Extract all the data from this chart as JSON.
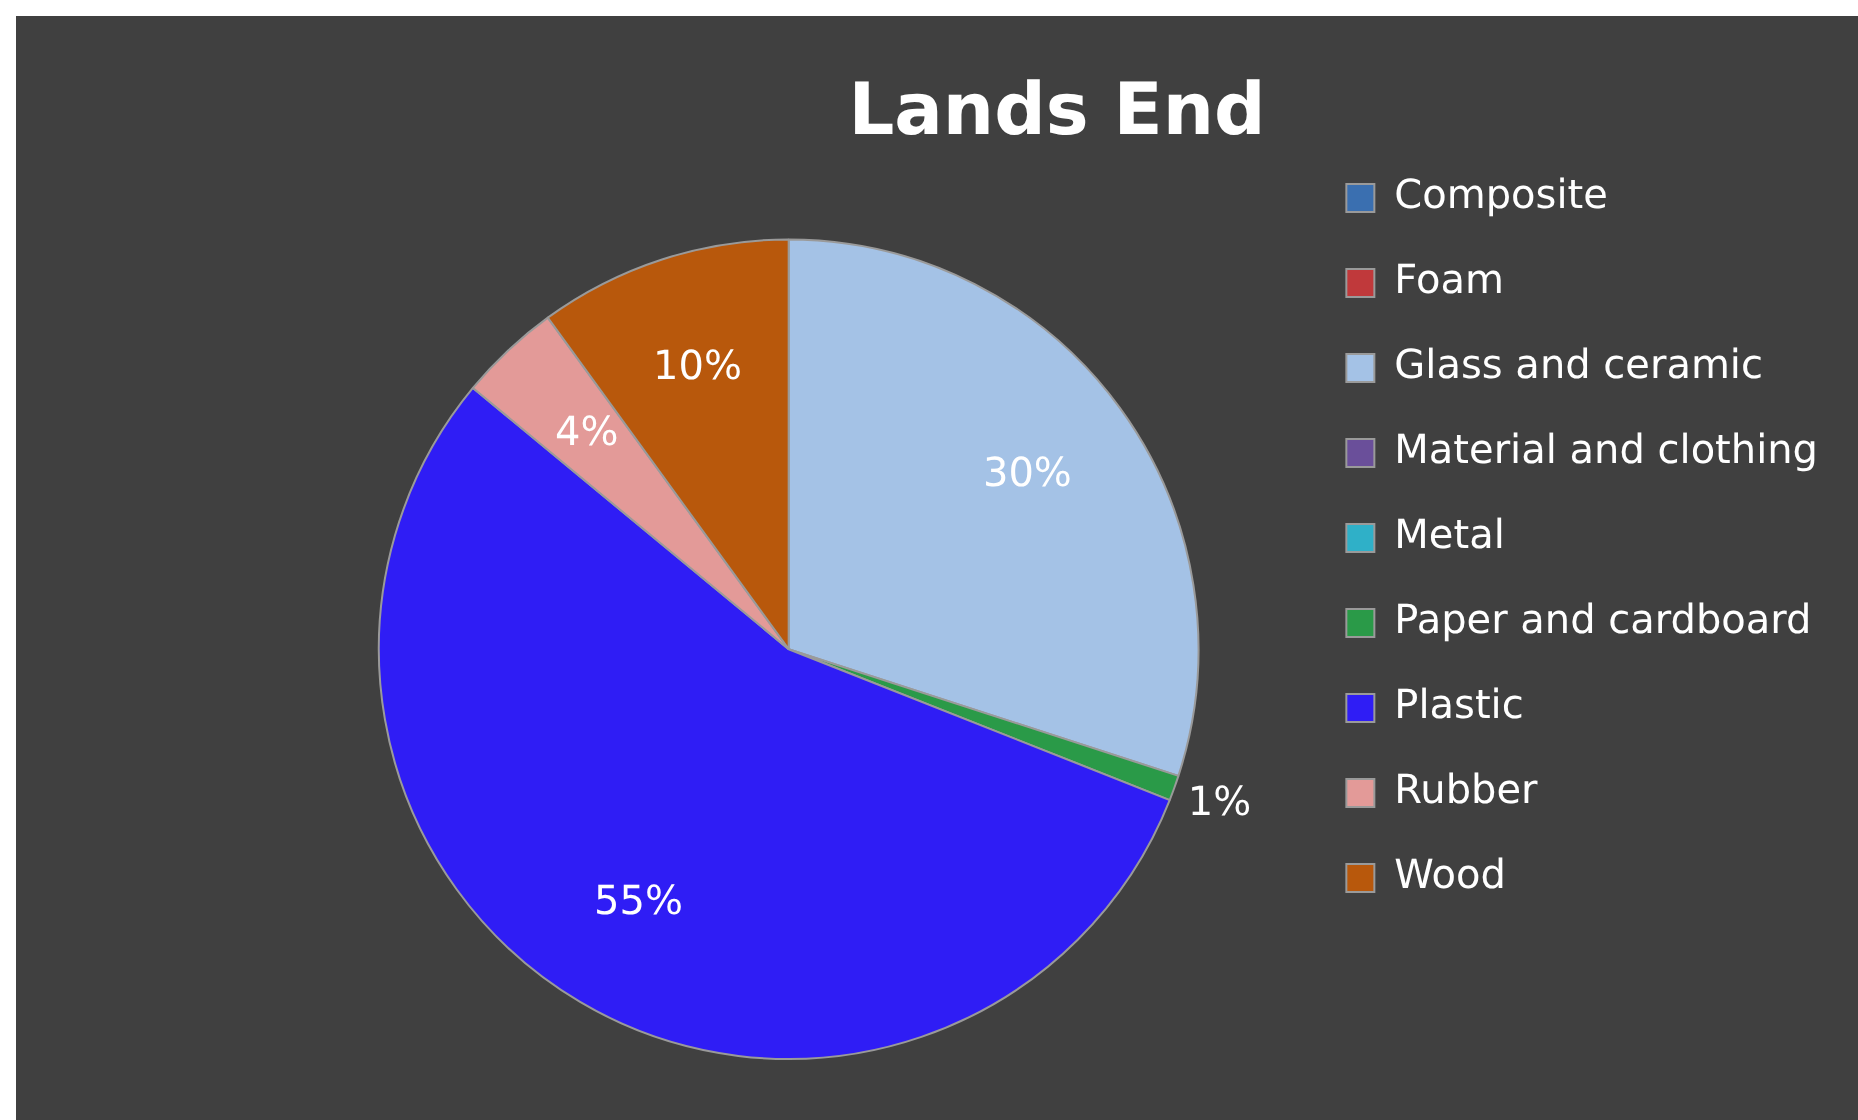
{
  "chart_data": {
    "type": "pie",
    "title": "Lands End",
    "categories": [
      "Composite",
      "Foam",
      "Glass and ceramic",
      "Material and clothing",
      "Metal",
      "Paper and cardboard",
      "Plastic",
      "Rubber",
      "Wood"
    ],
    "values": [
      0,
      0,
      30,
      0,
      0,
      1,
      55,
      4,
      10
    ],
    "value_labels": [
      null,
      null,
      "30%",
      null,
      null,
      "1%",
      "55%",
      "4%",
      "10%"
    ],
    "colors": [
      "#3a6fb0",
      "#c0393b",
      "#a4c2e6",
      "#6a4f9a",
      "#2fb0c8",
      "#2a9a48",
      "#2f1df5",
      "#e39a98",
      "#b8580c"
    ],
    "legend": "right"
  }
}
